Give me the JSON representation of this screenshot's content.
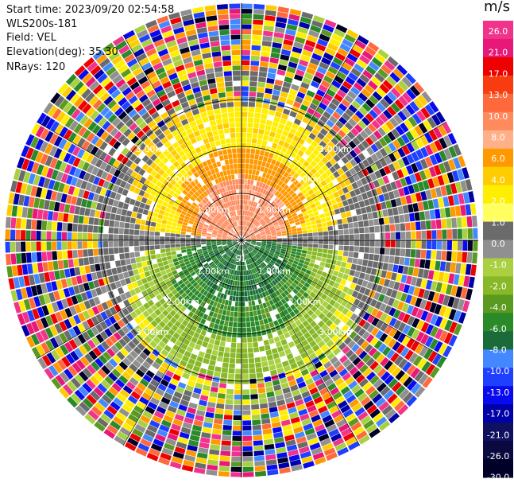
{
  "header": {
    "start_time": "Start time: 2023/09/20 02:54:58",
    "instrument": "WLS200s-181",
    "field": "Field: VEL",
    "elevation": "Elevation(deg): 35.30",
    "nrays": "NRays: 120"
  },
  "colorbar": {
    "unit": "m/s",
    "ticks": [
      "26.0",
      "21.0",
      "17.0",
      "13.0",
      "10.0",
      "8.0",
      "6.0",
      "4.0",
      "2.0",
      "1.0",
      "0.0",
      "-1.0",
      "-2.0",
      "-4.0",
      "-6.0",
      "-8.0",
      "-10.0",
      "-13.0",
      "-17.0",
      "-21.0",
      "-26.0",
      "-30.0"
    ],
    "colors": [
      "#f0348c",
      "#e81878",
      "#ee0000",
      "#f83c10",
      "#ff6a3c",
      "#ff8a5c",
      "#ffb088",
      "#ff9900",
      "#ffcc00",
      "#ffee00",
      "#ffff60",
      "#6b6b6b",
      "#909090",
      "#a8d040",
      "#88b828",
      "#5a9a20",
      "#2a8a2a",
      "#1a6a3a",
      "#4488ff",
      "#2040ff",
      "#0a0aee",
      "#0000a8",
      "#101060",
      "#0a0a40",
      "#000028"
    ]
  },
  "chart_data": {
    "type": "ppi",
    "field": "VEL",
    "units": "m/s",
    "nrays": 120,
    "elevation_deg": 35.3,
    "range_rings_km": [
      1.0,
      2.0,
      3.0
    ],
    "ring_labels": [
      "1.00km",
      "2.00km",
      "3.00km"
    ],
    "center_label": "S1",
    "velocity_structure": [
      {
        "sector": "north",
        "values_ms": [
          1.0,
          2.0,
          6.0,
          8.0
        ],
        "color": "yellow-orange"
      },
      {
        "sector": "south",
        "values_ms": [
          -1.0,
          -2.0,
          -4.0,
          -6.0
        ],
        "color": "green"
      },
      {
        "sector": "far-range",
        "values_ms": "noise",
        "color": "random"
      }
    ]
  }
}
